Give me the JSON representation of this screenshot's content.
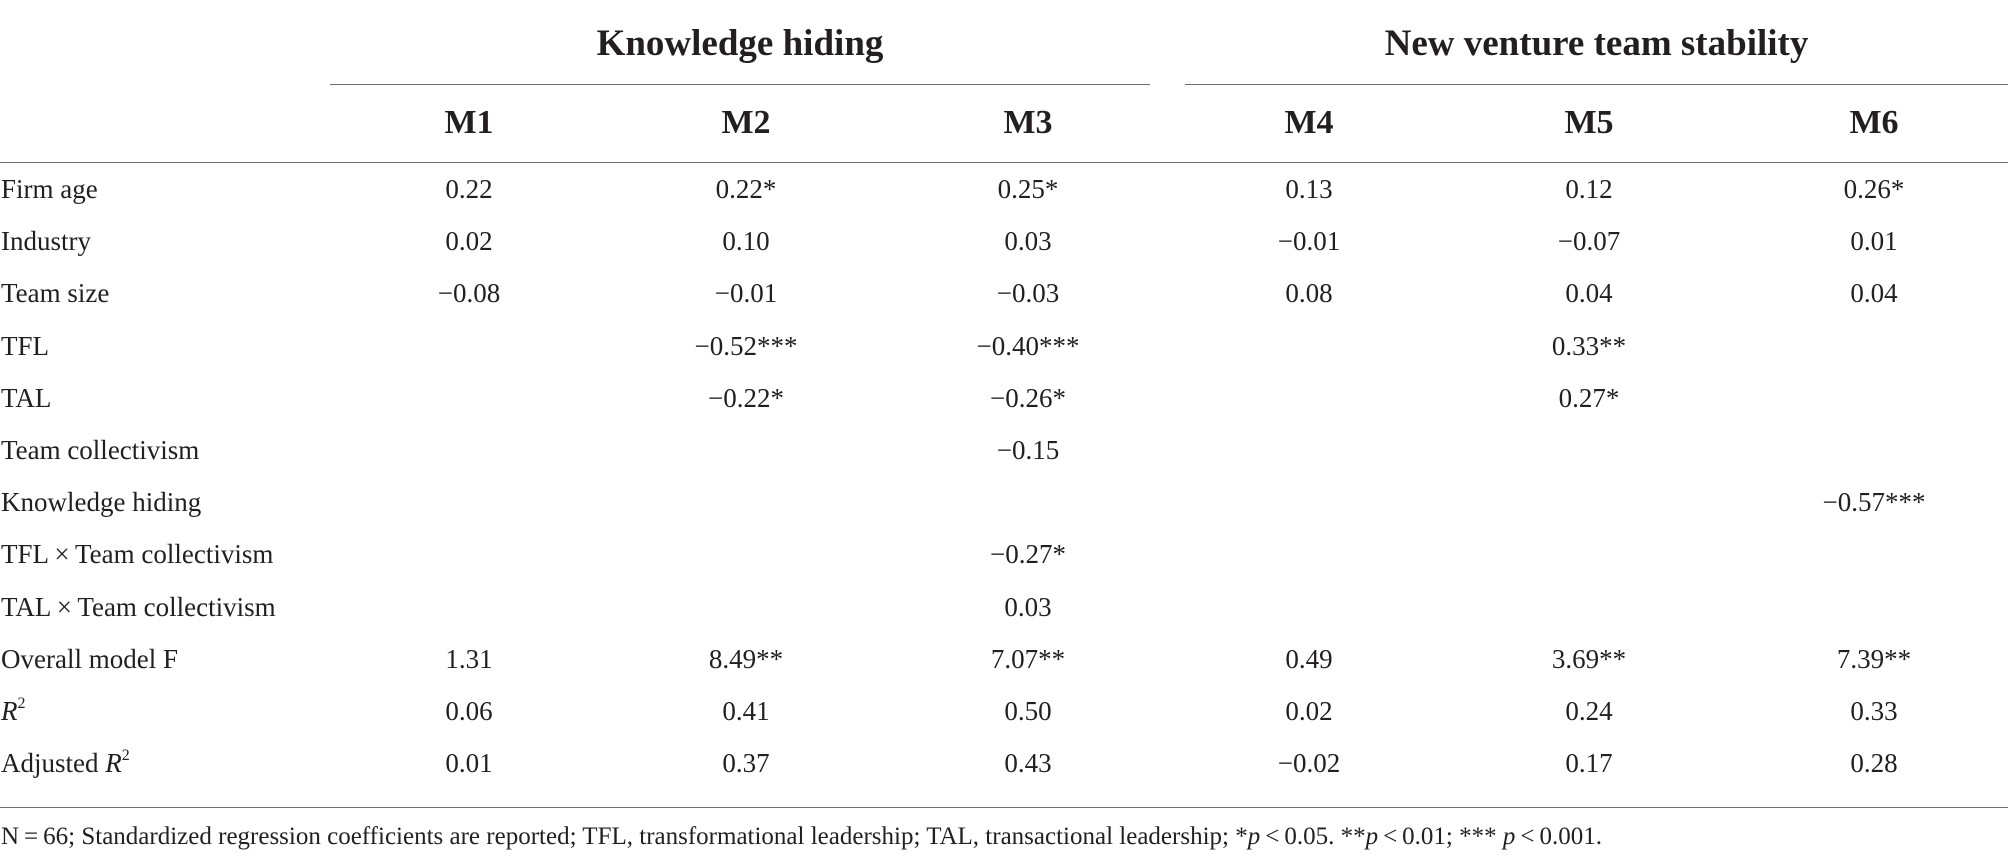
{
  "table": {
    "group_headers": {
      "knowledge_hiding": "Knowledge hiding",
      "new_venture_team_stability": "New venture team stability"
    },
    "columns": [
      "M1",
      "M2",
      "M3",
      "M4",
      "M5",
      "M6"
    ],
    "rows": [
      {
        "label": "Firm age",
        "values": [
          "0.22",
          "0.22*",
          "0.25*",
          "0.13",
          "0.12",
          "0.26*"
        ]
      },
      {
        "label": "Industry",
        "values": [
          "0.02",
          "0.10",
          "0.03",
          "−0.01",
          "−0.07",
          "0.01"
        ]
      },
      {
        "label": "Team size",
        "values": [
          "−0.08",
          "−0.01",
          "−0.03",
          "0.08",
          "0.04",
          "0.04"
        ]
      },
      {
        "label": "TFL",
        "values": [
          "",
          "−0.52***",
          "−0.40***",
          "",
          "0.33**",
          ""
        ]
      },
      {
        "label": "TAL",
        "values": [
          "",
          "−0.22*",
          "−0.26*",
          "",
          "0.27*",
          ""
        ]
      },
      {
        "label": "Team collectivism",
        "values": [
          "",
          "",
          "−0.15",
          "",
          "",
          ""
        ]
      },
      {
        "label": "Knowledge hiding",
        "values": [
          "",
          "",
          "",
          "",
          "",
          "−0.57***"
        ]
      },
      {
        "label": "TFL × Team collectivism",
        "values": [
          "",
          "",
          "−0.27*",
          "",
          "",
          ""
        ]
      },
      {
        "label": "TAL × Team collectivism",
        "values": [
          "",
          "",
          "0.03",
          "",
          "",
          ""
        ]
      },
      {
        "label": "Overall model F",
        "values": [
          "1.31",
          "8.49**",
          "7.07**",
          "0.49",
          "3.69**",
          "7.39**"
        ]
      },
      {
        "label_italic": "R",
        "label_sup": "2",
        "values": [
          "0.06",
          "0.41",
          "0.50",
          "0.02",
          "0.24",
          "0.33"
        ]
      },
      {
        "label_prefix": "Adjusted ",
        "label_italic": "R",
        "label_sup": "2",
        "values": [
          "0.01",
          "0.37",
          "0.43",
          "−0.02",
          "0.17",
          "0.28"
        ]
      }
    ],
    "footnote": {
      "text": "N = 66; Standardized regression coefficients are reported; TFL, transformational leadership; TAL, transactional leadership; *",
      "p1": "p",
      "t1": " < 0.05. **",
      "p2": "p",
      "t2": " < 0.01; *** ",
      "p3": "p",
      "t3": " < 0.001."
    }
  }
}
